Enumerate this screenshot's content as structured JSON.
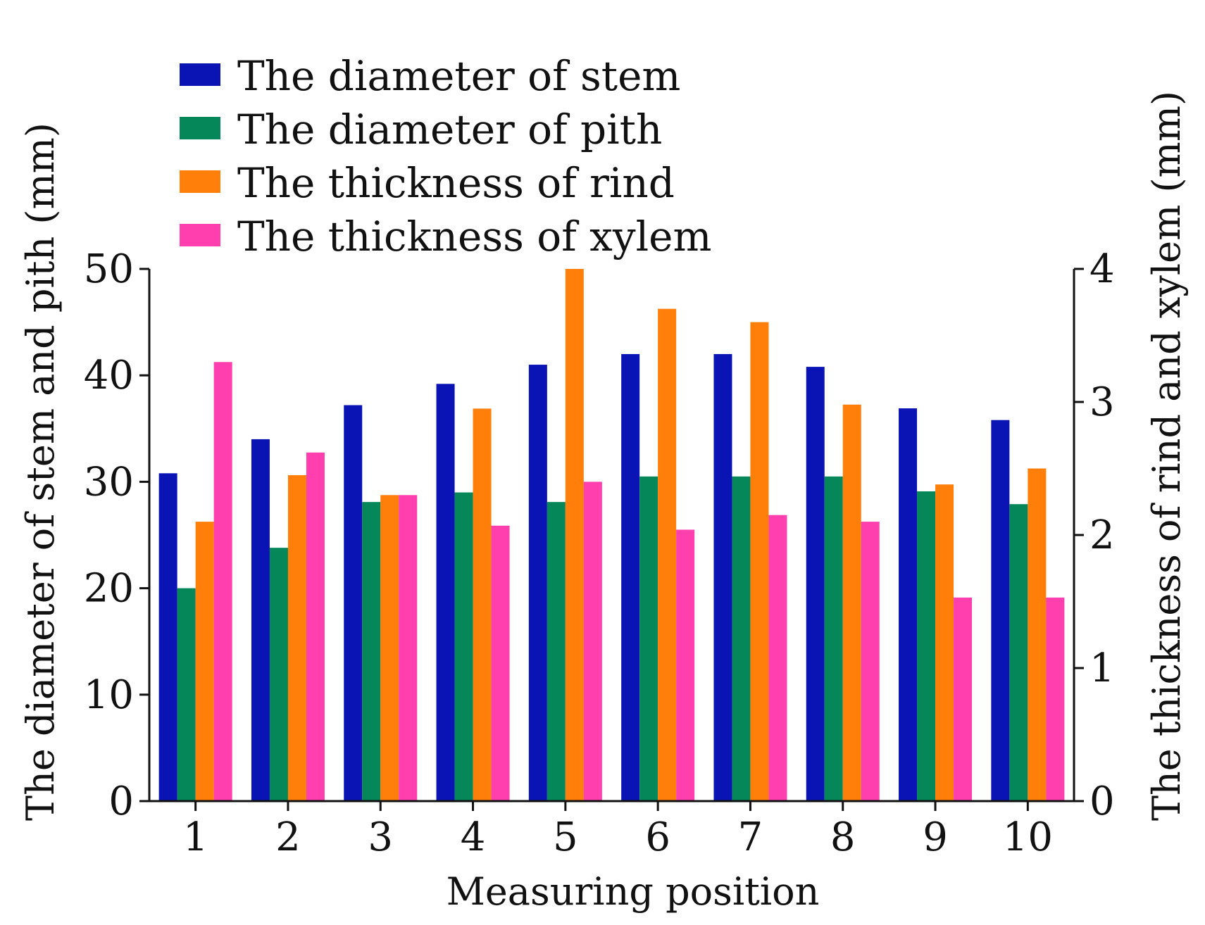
{
  "chart_data": {
    "type": "bar",
    "title": "",
    "xlabel": "Measuring position",
    "ylabel_left": "The diameter of stem and pith (mm)",
    "ylabel_right": "The thickness of rind and xylem (mm)",
    "categories": [
      "1",
      "2",
      "3",
      "4",
      "5",
      "6",
      "7",
      "8",
      "9",
      "10"
    ],
    "ylim_left": [
      0,
      50
    ],
    "yticks_left": [
      "0",
      "10",
      "20",
      "30",
      "40",
      "50"
    ],
    "ylim_right": [
      0,
      4
    ],
    "yticks_right": [
      "0",
      "1",
      "2",
      "3",
      "4"
    ],
    "legend_position": "top-left",
    "grid": false,
    "series": [
      {
        "name": "The diameter of stem",
        "axis": "left",
        "color": "#0A14B4",
        "values": [
          30.8,
          34.0,
          37.2,
          39.2,
          41.0,
          42.0,
          42.0,
          40.8,
          36.9,
          35.8
        ]
      },
      {
        "name": "The diameter of pith",
        "axis": "left",
        "color": "#06875A",
        "values": [
          20.0,
          23.8,
          28.1,
          29.0,
          28.1,
          30.5,
          30.5,
          30.5,
          29.1,
          27.9
        ]
      },
      {
        "name": "The thickness of rind",
        "axis": "right",
        "color": "#FF7F0A",
        "values": [
          2.1,
          2.45,
          2.3,
          2.95,
          4.0,
          3.7,
          3.6,
          2.98,
          2.38,
          2.5
        ]
      },
      {
        "name": "The thickness of xylem",
        "axis": "right",
        "color": "#FF3FAE",
        "values": [
          3.3,
          2.62,
          2.3,
          2.07,
          2.4,
          2.04,
          2.15,
          2.1,
          1.53,
          1.53
        ]
      }
    ]
  }
}
